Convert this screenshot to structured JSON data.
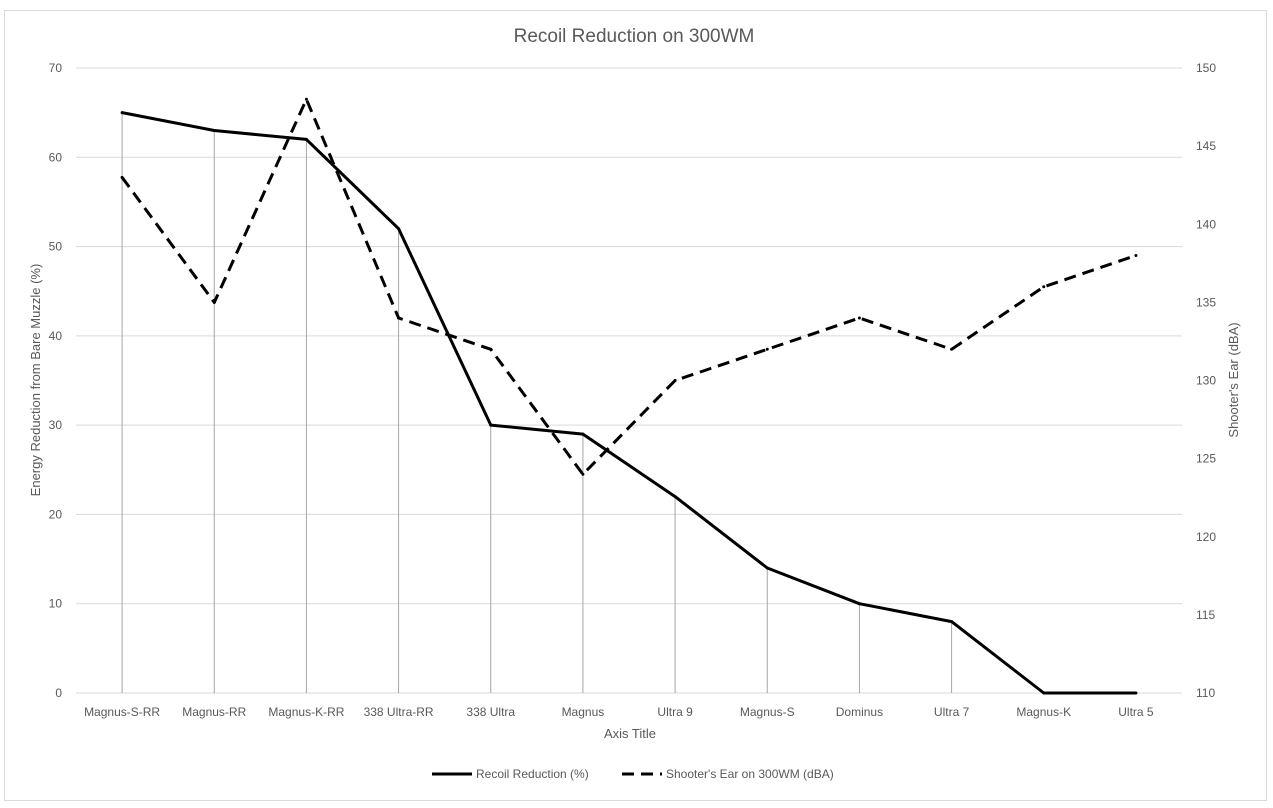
{
  "chart_data": {
    "type": "line",
    "title": "Recoil Reduction on 300WM",
    "xlabel": "Axis Title",
    "ylabel": "Energy Reduction from Bare Muzzle (%)",
    "y2label": "Shooter's Ear (dBA)",
    "categories": [
      "Magnus-S-RR",
      "Magnus-RR",
      "Magnus-K-RR",
      "338 Ultra-RR",
      "338 Ultra",
      "Magnus",
      "Ultra 9",
      "Magnus-S",
      "Dominus",
      "Ultra 7",
      "Magnus-K",
      "Ultra 5"
    ],
    "ylim": [
      0,
      70
    ],
    "yticks": [
      0,
      10,
      20,
      30,
      40,
      50,
      60,
      70
    ],
    "y2lim": [
      110,
      150
    ],
    "y2ticks": [
      110,
      115,
      120,
      125,
      130,
      135,
      140,
      145,
      150
    ],
    "grid": true,
    "drop_lines": true,
    "legend_position": "bottom",
    "series": [
      {
        "name": "Recoil Reduction (%)",
        "axis": "left",
        "style": "solid",
        "color": "#000000",
        "values": [
          65,
          63,
          62,
          52,
          30,
          29,
          22,
          14,
          10,
          8,
          0,
          0
        ]
      },
      {
        "name": "Shooter's Ear on 300WM (dBA)",
        "axis": "right",
        "style": "dashed",
        "color": "#000000",
        "values": [
          143,
          135,
          148,
          134,
          132,
          124,
          130,
          132,
          134,
          132,
          136,
          138
        ]
      }
    ]
  }
}
